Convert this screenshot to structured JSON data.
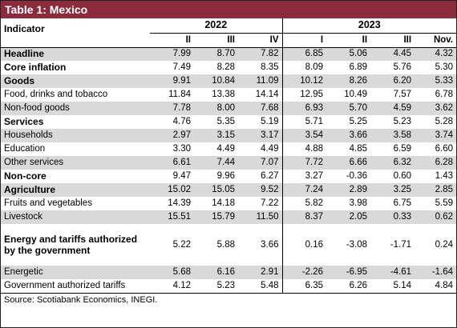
{
  "title": "Table 1: Mexico",
  "header": {
    "indicator_label": "Indicator",
    "years": [
      "2022",
      "2023"
    ],
    "periods": [
      "II",
      "III",
      "IV",
      "I",
      "II",
      "III",
      "Nov."
    ]
  },
  "rows": [
    {
      "label": "Headline",
      "bold": true,
      "values": [
        "7.99",
        "8.70",
        "7.82",
        "6.85",
        "5.06",
        "4.45",
        "4.32"
      ]
    },
    {
      "label": "Core inflation",
      "bold": true,
      "values": [
        "7.49",
        "8.28",
        "8.35",
        "8.09",
        "6.89",
        "5.76",
        "5.30"
      ]
    },
    {
      "label": "Goods",
      "bold": true,
      "values": [
        "9.91",
        "10.84",
        "11.09",
        "10.12",
        "8.26",
        "6.20",
        "5.33"
      ]
    },
    {
      "label": "Food, drinks and tobacco",
      "bold": false,
      "values": [
        "11.84",
        "13.38",
        "14.14",
        "12.95",
        "10.49",
        "7.57",
        "6.78"
      ]
    },
    {
      "label": "Non-food goods",
      "bold": false,
      "values": [
        "7.78",
        "8.00",
        "7.68",
        "6.93",
        "5.70",
        "4.59",
        "3.62"
      ]
    },
    {
      "label": "Services",
      "bold": true,
      "values": [
        "4.76",
        "5.35",
        "5.19",
        "5.71",
        "5.25",
        "5.23",
        "5.28"
      ]
    },
    {
      "label": "Households",
      "bold": false,
      "values": [
        "2.97",
        "3.15",
        "3.17",
        "3.54",
        "3.66",
        "3.58",
        "3.74"
      ]
    },
    {
      "label": "Education",
      "bold": false,
      "values": [
        "3.30",
        "4.49",
        "4.49",
        "4.88",
        "4.85",
        "6.59",
        "6.60"
      ]
    },
    {
      "label": "Other services",
      "bold": false,
      "values": [
        "6.61",
        "7.44",
        "7.07",
        "7.72",
        "6.66",
        "6.32",
        "6.28"
      ]
    },
    {
      "label": "Non-core",
      "bold": true,
      "values": [
        "9.47",
        "9.96",
        "6.27",
        "3.27",
        "-0.36",
        "0.60",
        "1.43"
      ]
    },
    {
      "label": "Agriculture",
      "bold": true,
      "values": [
        "15.02",
        "15.05",
        "9.52",
        "7.24",
        "2.89",
        "3.25",
        "2.85"
      ]
    },
    {
      "label": "Fruits and vegetables",
      "bold": false,
      "values": [
        "14.39",
        "14.18",
        "7.22",
        "5.82",
        "3.98",
        "6.75",
        "5.59"
      ]
    },
    {
      "label": "Livestock",
      "bold": false,
      "values": [
        "15.51",
        "15.79",
        "11.50",
        "8.37",
        "2.05",
        "0.33",
        "0.62"
      ]
    },
    {
      "label": "Energy and tariffs authorized by the government",
      "bold": true,
      "tall": true,
      "values": [
        "5.22",
        "5.88",
        "3.66",
        "0.16",
        "-3.08",
        "-1.71",
        "0.24"
      ]
    },
    {
      "label": "Energetic",
      "bold": false,
      "values": [
        "5.68",
        "6.16",
        "2.91",
        "-2.26",
        "-6.95",
        "-4.61",
        "-1.64"
      ]
    },
    {
      "label": "Government authorized tariffs",
      "bold": false,
      "values": [
        "4.12",
        "5.23",
        "5.48",
        "6.35",
        "6.26",
        "5.14",
        "4.84"
      ]
    }
  ],
  "source": "Source: Scotiabank Economics, INEGI."
}
